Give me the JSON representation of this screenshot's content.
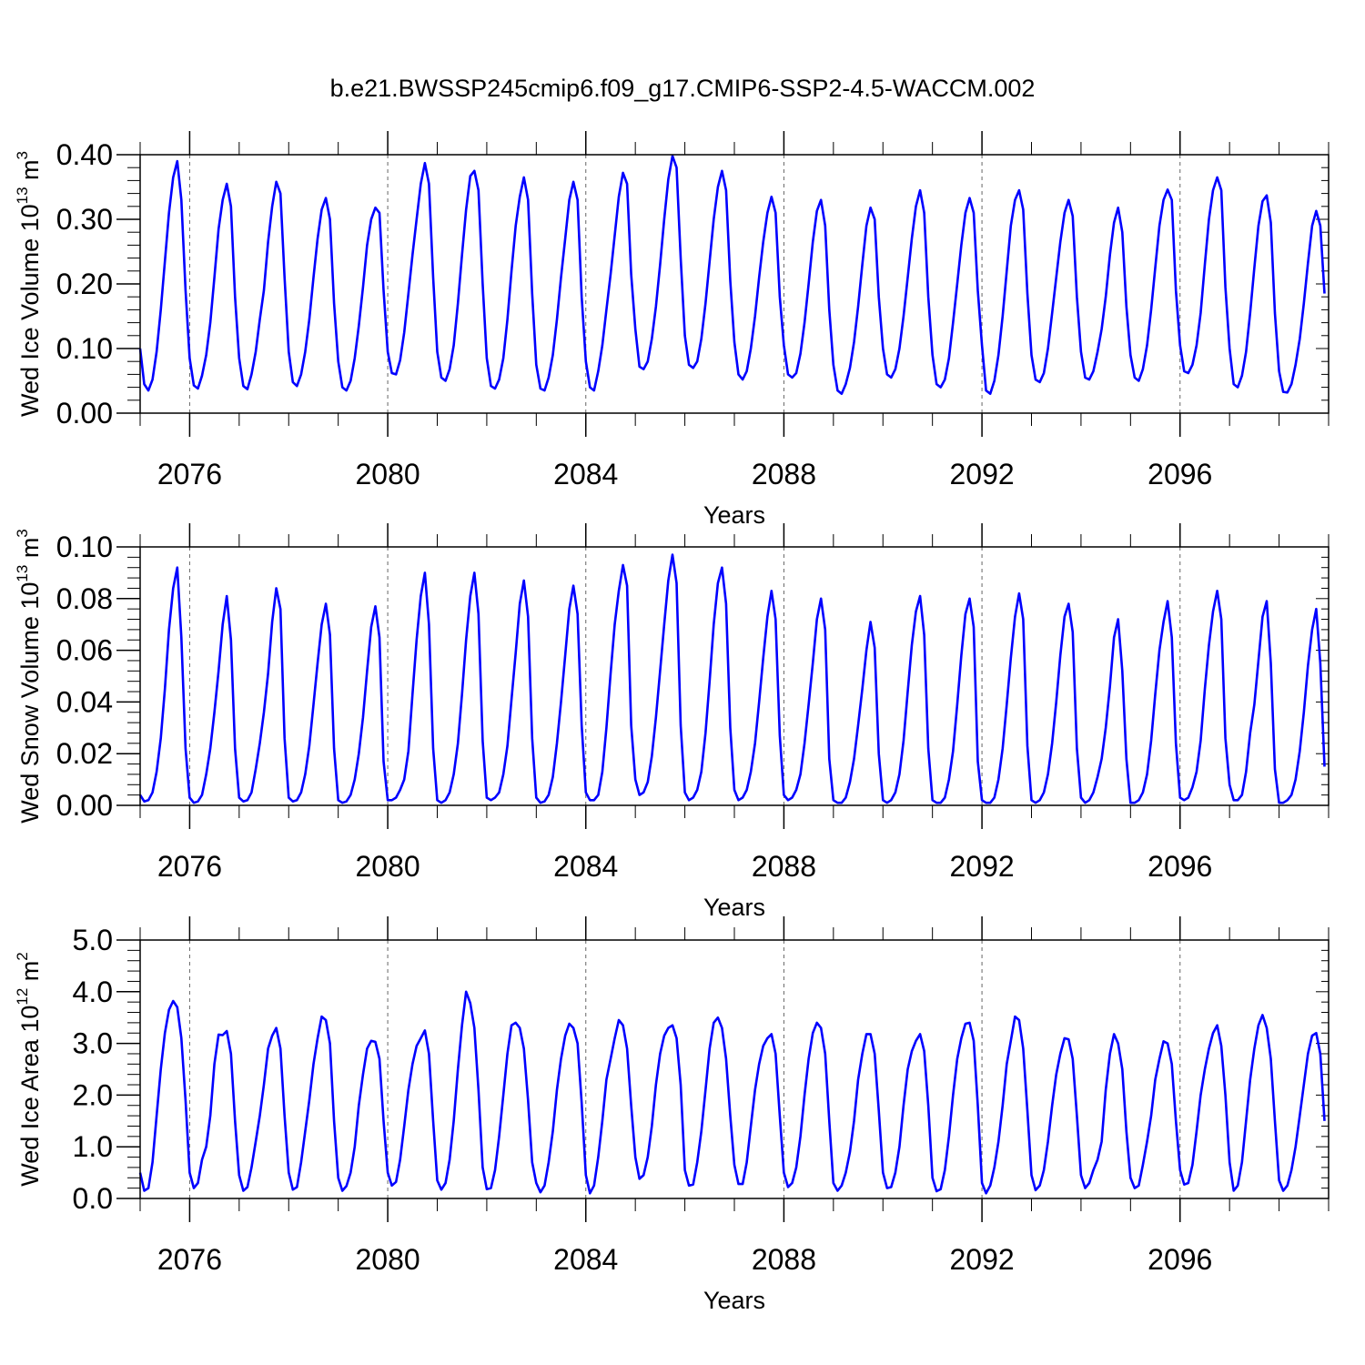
{
  "title": "b.e21.BWSSP245cmip6.f09_g17.CMIP6-SSP2-4.5-WACCM.002",
  "colors": {
    "line": "#0000ff",
    "axis": "#000000",
    "refline": "#666666"
  },
  "chart_data": [
    {
      "type": "line",
      "xlabel": "Years",
      "ylabel": {
        "pre": "Wed Ice Volume 10",
        "exp1": "13",
        "mid": " m",
        "exp2": "3"
      },
      "xlim": [
        2075.0,
        2099.0
      ],
      "ylim": [
        0.0,
        0.4
      ],
      "yticks": [
        "0.00",
        "0.10",
        "0.20",
        "0.30",
        "0.40"
      ],
      "xticks": [
        "2076",
        "2080",
        "2084",
        "2088",
        "2092",
        "2096"
      ],
      "x_start": 2075.0,
      "x_step_months": 1,
      "grid": "dashed vertical lines at labeled years",
      "series": [
        {
          "values": [
            0.1,
            0.045,
            0.035,
            0.052,
            0.095,
            0.16,
            0.235,
            0.31,
            0.365,
            0.39,
            0.33,
            0.19,
            0.085,
            0.043,
            0.038,
            0.058,
            0.09,
            0.14,
            0.21,
            0.285,
            0.33,
            0.355,
            0.32,
            0.18,
            0.085,
            0.042,
            0.037,
            0.06,
            0.095,
            0.145,
            0.19,
            0.265,
            0.32,
            0.358,
            0.34,
            0.21,
            0.095,
            0.048,
            0.042,
            0.06,
            0.095,
            0.145,
            0.21,
            0.27,
            0.315,
            0.333,
            0.3,
            0.17,
            0.08,
            0.04,
            0.035,
            0.05,
            0.085,
            0.135,
            0.195,
            0.26,
            0.3,
            0.318,
            0.31,
            0.19,
            0.095,
            0.062,
            0.06,
            0.082,
            0.125,
            0.185,
            0.245,
            0.3,
            0.355,
            0.387,
            0.355,
            0.21,
            0.095,
            0.055,
            0.05,
            0.068,
            0.105,
            0.17,
            0.245,
            0.315,
            0.367,
            0.375,
            0.345,
            0.2,
            0.085,
            0.042,
            0.038,
            0.052,
            0.085,
            0.145,
            0.22,
            0.29,
            0.335,
            0.365,
            0.33,
            0.185,
            0.075,
            0.038,
            0.035,
            0.055,
            0.09,
            0.145,
            0.21,
            0.27,
            0.33,
            0.358,
            0.33,
            0.18,
            0.08,
            0.04,
            0.035,
            0.065,
            0.105,
            0.16,
            0.215,
            0.275,
            0.335,
            0.372,
            0.355,
            0.215,
            0.13,
            0.072,
            0.068,
            0.08,
            0.115,
            0.165,
            0.23,
            0.3,
            0.362,
            0.398,
            0.38,
            0.24,
            0.12,
            0.075,
            0.07,
            0.08,
            0.115,
            0.17,
            0.235,
            0.3,
            0.35,
            0.375,
            0.345,
            0.205,
            0.11,
            0.06,
            0.052,
            0.065,
            0.1,
            0.15,
            0.21,
            0.265,
            0.31,
            0.335,
            0.31,
            0.18,
            0.105,
            0.06,
            0.055,
            0.062,
            0.092,
            0.14,
            0.2,
            0.265,
            0.313,
            0.33,
            0.29,
            0.16,
            0.075,
            0.035,
            0.03,
            0.045,
            0.07,
            0.11,
            0.165,
            0.23,
            0.29,
            0.318,
            0.3,
            0.18,
            0.1,
            0.06,
            0.055,
            0.068,
            0.1,
            0.15,
            0.21,
            0.27,
            0.32,
            0.345,
            0.31,
            0.18,
            0.09,
            0.045,
            0.04,
            0.052,
            0.085,
            0.14,
            0.2,
            0.26,
            0.31,
            0.333,
            0.31,
            0.19,
            0.105,
            0.035,
            0.03,
            0.05,
            0.09,
            0.15,
            0.22,
            0.29,
            0.33,
            0.345,
            0.315,
            0.185,
            0.09,
            0.052,
            0.048,
            0.062,
            0.1,
            0.155,
            0.21,
            0.265,
            0.31,
            0.33,
            0.305,
            0.18,
            0.095,
            0.055,
            0.052,
            0.065,
            0.095,
            0.13,
            0.18,
            0.245,
            0.295,
            0.318,
            0.28,
            0.165,
            0.09,
            0.055,
            0.05,
            0.068,
            0.105,
            0.16,
            0.225,
            0.29,
            0.33,
            0.346,
            0.33,
            0.19,
            0.105,
            0.065,
            0.062,
            0.075,
            0.105,
            0.155,
            0.23,
            0.3,
            0.345,
            0.365,
            0.345,
            0.195,
            0.1,
            0.045,
            0.04,
            0.058,
            0.095,
            0.155,
            0.225,
            0.29,
            0.328,
            0.337,
            0.295,
            0.155,
            0.065,
            0.033,
            0.032,
            0.045,
            0.075,
            0.115,
            0.17,
            0.232,
            0.29,
            0.313,
            0.29,
            0.185
          ]
        }
      ]
    },
    {
      "type": "line",
      "xlabel": "Years",
      "ylabel": {
        "pre": "Wed Snow Volume 10",
        "exp1": "13",
        "mid": " m",
        "exp2": "3"
      },
      "xlim": [
        2075.0,
        2099.0
      ],
      "ylim": [
        0.0,
        0.1
      ],
      "yticks": [
        "0.00",
        "0.02",
        "0.04",
        "0.06",
        "0.08",
        "0.10"
      ],
      "xticks": [
        "2076",
        "2080",
        "2084",
        "2088",
        "2092",
        "2096"
      ],
      "x_start": 2075.0,
      "x_step_months": 1,
      "grid": "dashed vertical lines at labeled years",
      "series": [
        {
          "values": [
            0.004,
            0.0015,
            0.002,
            0.005,
            0.013,
            0.026,
            0.045,
            0.068,
            0.084,
            0.092,
            0.065,
            0.022,
            0.003,
            0.001,
            0.0015,
            0.004,
            0.012,
            0.022,
            0.036,
            0.052,
            0.07,
            0.081,
            0.064,
            0.022,
            0.003,
            0.0015,
            0.002,
            0.005,
            0.014,
            0.024,
            0.036,
            0.051,
            0.071,
            0.084,
            0.076,
            0.026,
            0.003,
            0.0015,
            0.002,
            0.005,
            0.012,
            0.023,
            0.039,
            0.055,
            0.07,
            0.078,
            0.066,
            0.022,
            0.002,
            0.001,
            0.0015,
            0.004,
            0.01,
            0.02,
            0.034,
            0.052,
            0.069,
            0.077,
            0.065,
            0.017,
            0.002,
            0.002,
            0.003,
            0.006,
            0.01,
            0.021,
            0.043,
            0.064,
            0.081,
            0.09,
            0.07,
            0.022,
            0.002,
            0.001,
            0.002,
            0.005,
            0.012,
            0.024,
            0.043,
            0.064,
            0.081,
            0.09,
            0.074,
            0.025,
            0.003,
            0.002,
            0.003,
            0.005,
            0.012,
            0.023,
            0.041,
            0.059,
            0.078,
            0.087,
            0.073,
            0.026,
            0.003,
            0.001,
            0.0015,
            0.004,
            0.011,
            0.024,
            0.04,
            0.058,
            0.076,
            0.085,
            0.074,
            0.031,
            0.005,
            0.002,
            0.002,
            0.004,
            0.013,
            0.03,
            0.051,
            0.07,
            0.083,
            0.093,
            0.085,
            0.031,
            0.01,
            0.004,
            0.005,
            0.009,
            0.019,
            0.034,
            0.052,
            0.07,
            0.087,
            0.097,
            0.086,
            0.031,
            0.005,
            0.002,
            0.003,
            0.006,
            0.013,
            0.028,
            0.048,
            0.07,
            0.086,
            0.092,
            0.078,
            0.03,
            0.006,
            0.002,
            0.003,
            0.006,
            0.013,
            0.024,
            0.04,
            0.057,
            0.073,
            0.083,
            0.072,
            0.027,
            0.004,
            0.002,
            0.003,
            0.006,
            0.012,
            0.024,
            0.039,
            0.055,
            0.072,
            0.08,
            0.068,
            0.018,
            0.002,
            0.001,
            0.001,
            0.003,
            0.009,
            0.018,
            0.031,
            0.045,
            0.06,
            0.071,
            0.061,
            0.02,
            0.002,
            0.001,
            0.002,
            0.005,
            0.012,
            0.025,
            0.044,
            0.062,
            0.075,
            0.081,
            0.066,
            0.022,
            0.002,
            0.001,
            0.001,
            0.003,
            0.01,
            0.021,
            0.039,
            0.058,
            0.074,
            0.08,
            0.069,
            0.017,
            0.002,
            0.001,
            0.001,
            0.003,
            0.01,
            0.022,
            0.039,
            0.057,
            0.073,
            0.082,
            0.072,
            0.023,
            0.002,
            0.001,
            0.002,
            0.005,
            0.012,
            0.024,
            0.04,
            0.058,
            0.073,
            0.078,
            0.067,
            0.022,
            0.003,
            0.001,
            0.002,
            0.005,
            0.011,
            0.018,
            0.03,
            0.046,
            0.065,
            0.072,
            0.052,
            0.018,
            0.001,
            0.001,
            0.002,
            0.005,
            0.012,
            0.025,
            0.043,
            0.06,
            0.071,
            0.079,
            0.065,
            0.024,
            0.003,
            0.002,
            0.003,
            0.007,
            0.013,
            0.025,
            0.045,
            0.062,
            0.075,
            0.083,
            0.072,
            0.026,
            0.008,
            0.002,
            0.002,
            0.004,
            0.013,
            0.028,
            0.039,
            0.056,
            0.073,
            0.079,
            0.055,
            0.014,
            0.001,
            0.001,
            0.002,
            0.004,
            0.01,
            0.021,
            0.036,
            0.054,
            0.068,
            0.076,
            0.055,
            0.015
          ]
        }
      ]
    },
    {
      "type": "line",
      "xlabel": "Years",
      "ylabel": {
        "pre": "Wed Ice Area 10",
        "exp1": "12",
        "mid": " m",
        "exp2": "2"
      },
      "xlim": [
        2075.0,
        2099.0
      ],
      "ylim": [
        0.0,
        5.0
      ],
      "yticks": [
        "0.0",
        "1.0",
        "2.0",
        "3.0",
        "4.0",
        "5.0"
      ],
      "xticks": [
        "2076",
        "2080",
        "2084",
        "2088",
        "2092",
        "2096"
      ],
      "x_start": 2075.0,
      "x_step_months": 1,
      "grid": "dashed vertical lines at labeled years",
      "series": [
        {
          "values": [
            0.5,
            0.15,
            0.2,
            0.7,
            1.6,
            2.5,
            3.2,
            3.65,
            3.82,
            3.7,
            3.1,
            1.9,
            0.5,
            0.2,
            0.3,
            0.75,
            1.0,
            1.6,
            2.6,
            3.17,
            3.16,
            3.24,
            2.8,
            1.5,
            0.45,
            0.15,
            0.22,
            0.6,
            1.1,
            1.6,
            2.2,
            2.9,
            3.15,
            3.3,
            2.9,
            1.6,
            0.5,
            0.17,
            0.22,
            0.7,
            1.3,
            1.9,
            2.6,
            3.1,
            3.52,
            3.45,
            3.0,
            1.5,
            0.4,
            0.15,
            0.24,
            0.5,
            1.0,
            1.8,
            2.4,
            2.9,
            3.05,
            3.03,
            2.7,
            1.5,
            0.5,
            0.25,
            0.32,
            0.75,
            1.4,
            2.1,
            2.6,
            2.95,
            3.1,
            3.25,
            2.8,
            1.5,
            0.35,
            0.17,
            0.3,
            0.75,
            1.5,
            2.5,
            3.35,
            4.0,
            3.78,
            3.3,
            2.1,
            0.6,
            0.18,
            0.2,
            0.55,
            1.2,
            2.0,
            2.8,
            3.35,
            3.4,
            3.3,
            2.9,
            1.9,
            0.7,
            0.3,
            0.12,
            0.25,
            0.7,
            1.3,
            2.1,
            2.7,
            3.15,
            3.38,
            3.3,
            3.0,
            1.85,
            0.45,
            0.1,
            0.25,
            0.8,
            1.5,
            2.3,
            2.7,
            3.1,
            3.45,
            3.35,
            2.9,
            1.8,
            0.8,
            0.38,
            0.45,
            0.8,
            1.4,
            2.2,
            2.8,
            3.15,
            3.3,
            3.35,
            3.1,
            2.2,
            0.55,
            0.25,
            0.27,
            0.7,
            1.3,
            2.1,
            2.9,
            3.4,
            3.5,
            3.3,
            2.7,
            1.6,
            0.65,
            0.28,
            0.28,
            0.7,
            1.4,
            2.1,
            2.6,
            2.95,
            3.1,
            3.18,
            2.8,
            1.6,
            0.5,
            0.22,
            0.3,
            0.6,
            1.2,
            2.0,
            2.7,
            3.2,
            3.4,
            3.3,
            2.8,
            1.5,
            0.3,
            0.15,
            0.25,
            0.5,
            0.9,
            1.5,
            2.3,
            2.8,
            3.18,
            3.18,
            2.8,
            1.7,
            0.5,
            0.2,
            0.22,
            0.5,
            1.0,
            1.8,
            2.5,
            2.85,
            3.05,
            3.18,
            2.85,
            1.8,
            0.4,
            0.14,
            0.18,
            0.55,
            1.2,
            2.0,
            2.7,
            3.1,
            3.38,
            3.4,
            3.05,
            1.8,
            0.3,
            0.1,
            0.25,
            0.6,
            1.1,
            1.8,
            2.6,
            3.05,
            3.52,
            3.45,
            2.9,
            1.7,
            0.45,
            0.16,
            0.25,
            0.55,
            1.1,
            1.8,
            2.4,
            2.8,
            3.1,
            3.08,
            2.7,
            1.6,
            0.45,
            0.2,
            0.3,
            0.55,
            0.75,
            1.1,
            2.1,
            2.8,
            3.18,
            3.0,
            2.5,
            1.3,
            0.4,
            0.2,
            0.25,
            0.65,
            1.1,
            1.6,
            2.3,
            2.7,
            3.04,
            3.0,
            2.6,
            1.5,
            0.55,
            0.27,
            0.3,
            0.65,
            1.3,
            2.0,
            2.5,
            2.9,
            3.2,
            3.35,
            2.95,
            2.0,
            0.7,
            0.15,
            0.25,
            0.7,
            1.5,
            2.3,
            2.9,
            3.35,
            3.55,
            3.3,
            2.7,
            1.5,
            0.35,
            0.15,
            0.25,
            0.55,
            1.0,
            1.6,
            2.2,
            2.8,
            3.15,
            3.2,
            2.8,
            1.5
          ]
        }
      ]
    }
  ]
}
